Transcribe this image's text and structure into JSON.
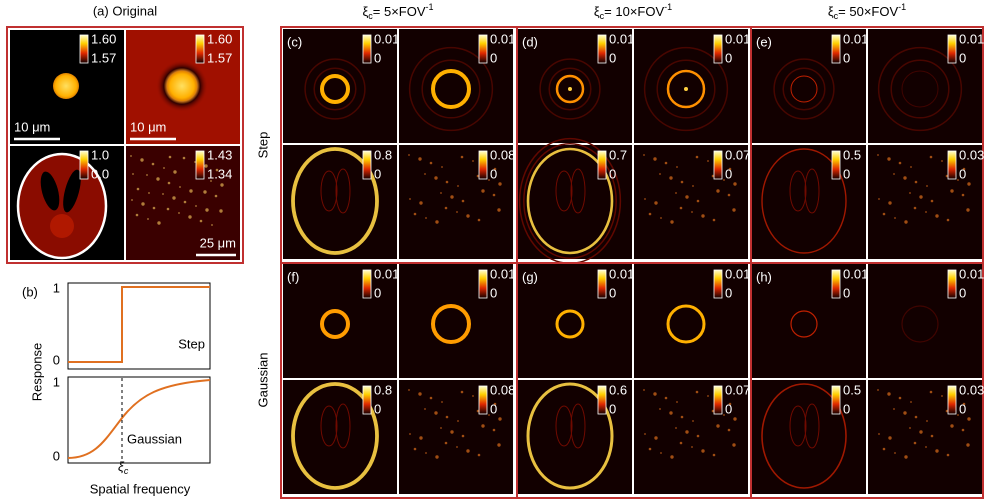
{
  "panel_a": {
    "title": "(a) Original",
    "images": [
      {
        "max": "1.60",
        "min": "1.57",
        "scalebar": "10 μm"
      },
      {
        "max": "1.60",
        "min": "1.57",
        "scalebar": "10 μm"
      },
      {
        "max": "1.0",
        "min": "0.0"
      },
      {
        "max": "1.43",
        "min": "1.34",
        "scalebar": "25 μm"
      }
    ]
  },
  "panel_b": {
    "label": "(b)",
    "y_label": "Response",
    "x_label": "Spatial frequency",
    "step": {
      "tick_top": "1",
      "tick_bottom": "0",
      "name": "Step"
    },
    "gaussian": {
      "tick_top": "1",
      "tick_bottom": "0",
      "name": "Gaussian",
      "cutoff": {
        "symbol": "ξ",
        "sub": "c"
      }
    }
  },
  "columns": [
    {
      "symbol": "ξ",
      "sub": "c",
      "text": "= 5×FOV",
      "sup": "-1"
    },
    {
      "symbol": "ξ",
      "sub": "c",
      "text": "= 10×FOV",
      "sup": "-1"
    },
    {
      "symbol": "ξ",
      "sub": "c",
      "text": "= 50×FOV",
      "sup": "-1"
    }
  ],
  "rows": [
    "Step",
    "Gaussian"
  ],
  "panels": [
    {
      "label": "(c)",
      "colorbars": [
        {
          "max": "0.01",
          "min": "0"
        },
        {
          "max": "0.01",
          "min": "0"
        },
        {
          "max": "0.8",
          "min": "0"
        },
        {
          "max": "0.08",
          "min": "0"
        }
      ]
    },
    {
      "label": "(d)",
      "colorbars": [
        {
          "max": "0.01",
          "min": "0"
        },
        {
          "max": "0.01",
          "min": "0"
        },
        {
          "max": "0.7",
          "min": "0"
        },
        {
          "max": "0.07",
          "min": "0"
        }
      ]
    },
    {
      "label": "(e)",
      "colorbars": [
        {
          "max": "0.01",
          "min": "0"
        },
        {
          "max": "0.01",
          "min": "0"
        },
        {
          "max": "0.5",
          "min": "0"
        },
        {
          "max": "0.03",
          "min": "0"
        }
      ]
    },
    {
      "label": "(f)",
      "colorbars": [
        {
          "max": "0.01",
          "min": "0"
        },
        {
          "max": "0.01",
          "min": "0"
        },
        {
          "max": "0.8",
          "min": "0"
        },
        {
          "max": "0.08",
          "min": "0"
        }
      ]
    },
    {
      "label": "(g)",
      "colorbars": [
        {
          "max": "0.01",
          "min": "0"
        },
        {
          "max": "0.01",
          "min": "0"
        },
        {
          "max": "0.6",
          "min": "0"
        },
        {
          "max": "0.07",
          "min": "0"
        }
      ]
    },
    {
      "label": "(h)",
      "colorbars": [
        {
          "max": "0.01",
          "min": "0"
        },
        {
          "max": "0.01",
          "min": "0"
        },
        {
          "max": "0.5",
          "min": "0"
        },
        {
          "max": "0.03",
          "min": "0"
        }
      ]
    }
  ]
}
